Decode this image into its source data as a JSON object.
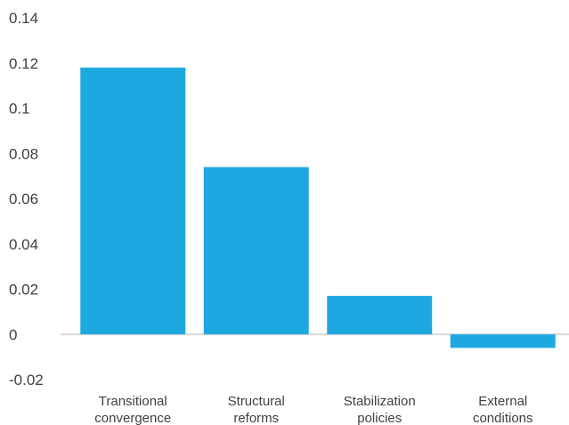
{
  "chart_data": {
    "type": "bar",
    "categories": [
      [
        "Transitional",
        "convergence"
      ],
      [
        "Structural",
        "reforms"
      ],
      [
        "Stabilization",
        "policies"
      ],
      [
        "External",
        "conditions"
      ]
    ],
    "values": [
      0.118,
      0.074,
      0.017,
      -0.006
    ],
    "ylim": [
      -0.02,
      0.14
    ],
    "yticks": [
      "0.14",
      "0.12",
      "0.1",
      "0.08",
      "0.06",
      "0.04",
      "0.02",
      "0",
      "-0.02"
    ],
    "grid": false,
    "legend": "none",
    "bar_color": "#1ea8e0",
    "title": "",
    "xlabel": "",
    "ylabel": ""
  }
}
